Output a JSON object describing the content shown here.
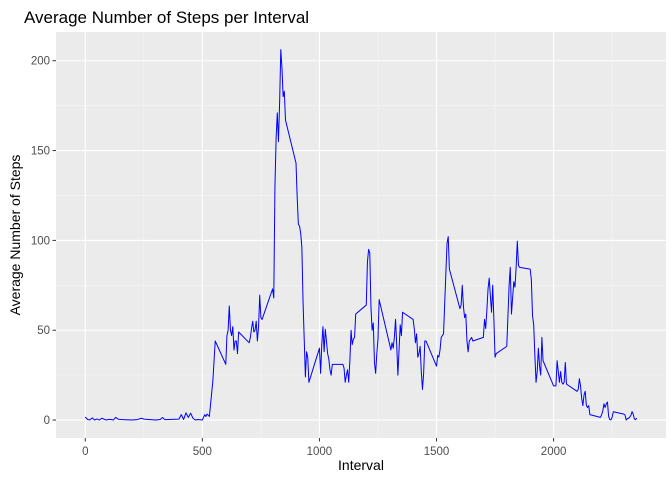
{
  "chart_data": {
    "type": "line",
    "title": "Average Number of Steps per Interval",
    "xlabel": "Interval",
    "ylabel": "Average Number of Steps",
    "xlim": [
      -125,
      2480
    ],
    "ylim": [
      -10,
      216
    ],
    "x_ticks": [
      0,
      500,
      1000,
      1500,
      2000
    ],
    "y_ticks": [
      0,
      50,
      100,
      150,
      200
    ],
    "x_tick_labels": [
      "0",
      "500",
      "1000",
      "1500",
      "2000"
    ],
    "y_tick_labels": [
      "0",
      "50",
      "100",
      "150",
      "200"
    ],
    "grid": true,
    "legend": "none",
    "series": [
      {
        "color": "#0000ff",
        "points": [
          [
            0,
            1.7
          ],
          [
            10,
            0.3
          ],
          [
            20,
            0.1
          ],
          [
            30,
            1.2
          ],
          [
            40,
            0.0
          ],
          [
            50,
            0.6
          ],
          [
            60,
            0.0
          ],
          [
            70,
            1.0
          ],
          [
            80,
            0.5
          ],
          [
            90,
            0.0
          ],
          [
            100,
            0.4
          ],
          [
            110,
            0.3
          ],
          [
            120,
            0.0
          ],
          [
            130,
            1.5
          ],
          [
            140,
            0.5
          ],
          [
            150,
            0.3
          ],
          [
            200,
            0.0
          ],
          [
            220,
            0.2
          ],
          [
            240,
            1.0
          ],
          [
            250,
            0.5
          ],
          [
            300,
            0.0
          ],
          [
            320,
            0.3
          ],
          [
            330,
            1.4
          ],
          [
            340,
            0.2
          ],
          [
            400,
            0.5
          ],
          [
            410,
            3.0
          ],
          [
            420,
            0.3
          ],
          [
            430,
            4.0
          ],
          [
            440,
            1.5
          ],
          [
            450,
            3.8
          ],
          [
            460,
            1.0
          ],
          [
            470,
            0.0
          ],
          [
            480,
            0.3
          ],
          [
            500,
            0.0
          ],
          [
            505,
            1.5
          ],
          [
            510,
            3.0
          ],
          [
            515,
            2.0
          ],
          [
            520,
            3.3
          ],
          [
            530,
            2.0
          ],
          [
            545,
            22.0
          ],
          [
            555,
            44.0
          ],
          [
            600,
            31.0
          ],
          [
            605,
            47.0
          ],
          [
            610,
            50.0
          ],
          [
            615,
            63.5
          ],
          [
            620,
            50.0
          ],
          [
            625,
            47.0
          ],
          [
            630,
            52.0
          ],
          [
            635,
            39.0
          ],
          [
            640,
            44.0
          ],
          [
            645,
            44.0
          ],
          [
            650,
            37.0
          ],
          [
            655,
            49.0
          ],
          [
            700,
            43.0
          ],
          [
            705,
            46.0
          ],
          [
            710,
            51.0
          ],
          [
            715,
            55.0
          ],
          [
            720,
            49.0
          ],
          [
            725,
            50.0
          ],
          [
            730,
            55.0
          ],
          [
            735,
            44.0
          ],
          [
            740,
            52.0
          ],
          [
            745,
            69.5
          ],
          [
            750,
            57.0
          ],
          [
            755,
            56.0
          ],
          [
            800,
            73.0
          ],
          [
            805,
            68.0
          ],
          [
            810,
            130.0
          ],
          [
            815,
            157.0
          ],
          [
            820,
            171.0
          ],
          [
            825,
            155.0
          ],
          [
            830,
            177.0
          ],
          [
            835,
            206.2
          ],
          [
            840,
            196.0
          ],
          [
            845,
            180.0
          ],
          [
            850,
            183.0
          ],
          [
            855,
            167.0
          ],
          [
            900,
            143.0
          ],
          [
            905,
            124.0
          ],
          [
            910,
            109.0
          ],
          [
            915,
            108.0
          ],
          [
            920,
            104.0
          ],
          [
            925,
            96.0
          ],
          [
            930,
            66.0
          ],
          [
            935,
            45.0
          ],
          [
            940,
            24.0
          ],
          [
            945,
            38.0
          ],
          [
            950,
            35.0
          ],
          [
            955,
            21.0
          ],
          [
            1000,
            40.0
          ],
          [
            1005,
            26.0
          ],
          [
            1010,
            42.0
          ],
          [
            1015,
            52.0
          ],
          [
            1020,
            38.0
          ],
          [
            1025,
            50.5
          ],
          [
            1030,
            44.0
          ],
          [
            1035,
            37.0
          ],
          [
            1040,
            34.0
          ],
          [
            1045,
            28.0
          ],
          [
            1050,
            25.0
          ],
          [
            1055,
            31.0
          ],
          [
            1100,
            31.0
          ],
          [
            1105,
            29.0
          ],
          [
            1110,
            21.0
          ],
          [
            1115,
            25.0
          ],
          [
            1120,
            28.0
          ],
          [
            1125,
            21.0
          ],
          [
            1130,
            33.0
          ],
          [
            1135,
            50.0
          ],
          [
            1140,
            42.0
          ],
          [
            1145,
            45.0
          ],
          [
            1150,
            46.0
          ],
          [
            1155,
            59.0
          ],
          [
            1200,
            64.0
          ],
          [
            1205,
            88.0
          ],
          [
            1210,
            95.0
          ],
          [
            1215,
            93.0
          ],
          [
            1220,
            63.0
          ],
          [
            1225,
            50.0
          ],
          [
            1230,
            54.0
          ],
          [
            1235,
            32.0
          ],
          [
            1240,
            26.0
          ],
          [
            1245,
            37.0
          ],
          [
            1250,
            45.0
          ],
          [
            1255,
            67.0
          ],
          [
            1300,
            42.0
          ],
          [
            1305,
            39.0
          ],
          [
            1310,
            43.0
          ],
          [
            1315,
            40.0
          ],
          [
            1320,
            46.0
          ],
          [
            1325,
            56.0
          ],
          [
            1330,
            42.0
          ],
          [
            1335,
            25.0
          ],
          [
            1340,
            39.0
          ],
          [
            1345,
            53.0
          ],
          [
            1350,
            47.0
          ],
          [
            1355,
            60.0
          ],
          [
            1400,
            56.0
          ],
          [
            1405,
            51.0
          ],
          [
            1410,
            43.0
          ],
          [
            1415,
            48.0
          ],
          [
            1420,
            35.0
          ],
          [
            1425,
            37.0
          ],
          [
            1430,
            41.0
          ],
          [
            1435,
            27.0
          ],
          [
            1440,
            17.0
          ],
          [
            1445,
            26.0
          ],
          [
            1450,
            44.0
          ],
          [
            1455,
            44.0
          ],
          [
            1500,
            30.0
          ],
          [
            1505,
            36.0
          ],
          [
            1510,
            35.0
          ],
          [
            1515,
            39.0
          ],
          [
            1520,
            46.0
          ],
          [
            1525,
            47.0
          ],
          [
            1530,
            48.0
          ],
          [
            1535,
            65.0
          ],
          [
            1540,
            82.0
          ],
          [
            1545,
            98.6
          ],
          [
            1550,
            102.1
          ],
          [
            1555,
            84.0
          ],
          [
            1600,
            62.0
          ],
          [
            1605,
            64.0
          ],
          [
            1610,
            75.0
          ],
          [
            1615,
            63.0
          ],
          [
            1620,
            57.0
          ],
          [
            1625,
            59.0
          ],
          [
            1630,
            44.0
          ],
          [
            1635,
            38.0
          ],
          [
            1640,
            44.0
          ],
          [
            1645,
            45.0
          ],
          [
            1650,
            46.0
          ],
          [
            1655,
            44.0
          ],
          [
            1700,
            46.0
          ],
          [
            1705,
            56.0
          ],
          [
            1710,
            51.0
          ],
          [
            1715,
            61.0
          ],
          [
            1720,
            73.0
          ],
          [
            1725,
            79.0
          ],
          [
            1730,
            69.0
          ],
          [
            1735,
            60.0
          ],
          [
            1740,
            75.0
          ],
          [
            1745,
            56.0
          ],
          [
            1750,
            35.0
          ],
          [
            1755,
            37.0
          ],
          [
            1800,
            41.0
          ],
          [
            1805,
            58.0
          ],
          [
            1810,
            75.0
          ],
          [
            1815,
            85.0
          ],
          [
            1820,
            59.0
          ],
          [
            1825,
            68.0
          ],
          [
            1830,
            77.0
          ],
          [
            1835,
            74.0
          ],
          [
            1840,
            85.0
          ],
          [
            1845,
            99.5
          ],
          [
            1850,
            86.0
          ],
          [
            1855,
            85.0
          ],
          [
            1900,
            84.0
          ],
          [
            1905,
            78.0
          ],
          [
            1910,
            58.0
          ],
          [
            1915,
            53.0
          ],
          [
            1920,
            36.0
          ],
          [
            1925,
            21.0
          ],
          [
            1930,
            27.0
          ],
          [
            1935,
            40.0
          ],
          [
            1940,
            30.0
          ],
          [
            1945,
            25.0
          ],
          [
            1950,
            46.0
          ],
          [
            1955,
            33.0
          ],
          [
            2000,
            19.0
          ],
          [
            2005,
            19.0
          ],
          [
            2010,
            19.0
          ],
          [
            2015,
            33.0
          ],
          [
            2020,
            27.0
          ],
          [
            2025,
            21.0
          ],
          [
            2030,
            27.0
          ],
          [
            2035,
            21.0
          ],
          [
            2040,
            20.0
          ],
          [
            2045,
            21.0
          ],
          [
            2050,
            32.0
          ],
          [
            2055,
            20.0
          ],
          [
            2100,
            16.0
          ],
          [
            2105,
            17.0
          ],
          [
            2110,
            23.0
          ],
          [
            2115,
            19.0
          ],
          [
            2120,
            12.0
          ],
          [
            2125,
            8.0
          ],
          [
            2130,
            14.0
          ],
          [
            2135,
            16.0
          ],
          [
            2140,
            8.0
          ],
          [
            2145,
            7.0
          ],
          [
            2150,
            8.0
          ],
          [
            2155,
            3.0
          ],
          [
            2200,
            1.5
          ],
          [
            2205,
            3.0
          ],
          [
            2210,
            5.0
          ],
          [
            2215,
            9.0
          ],
          [
            2220,
            7.0
          ],
          [
            2225,
            9.0
          ],
          [
            2230,
            10.0
          ],
          [
            2235,
            2.0
          ],
          [
            2240,
            0.3
          ],
          [
            2245,
            0.1
          ],
          [
            2250,
            1.6
          ],
          [
            2255,
            4.6
          ],
          [
            2300,
            3.3
          ],
          [
            2305,
            2.8
          ],
          [
            2310,
            0.0
          ],
          [
            2315,
            0.8
          ],
          [
            2320,
            1.0
          ],
          [
            2325,
            1.6
          ],
          [
            2330,
            2.6
          ],
          [
            2335,
            4.7
          ],
          [
            2340,
            3.3
          ],
          [
            2345,
            0.6
          ],
          [
            2350,
            0.2
          ],
          [
            2355,
            1.1
          ]
        ]
      }
    ]
  }
}
